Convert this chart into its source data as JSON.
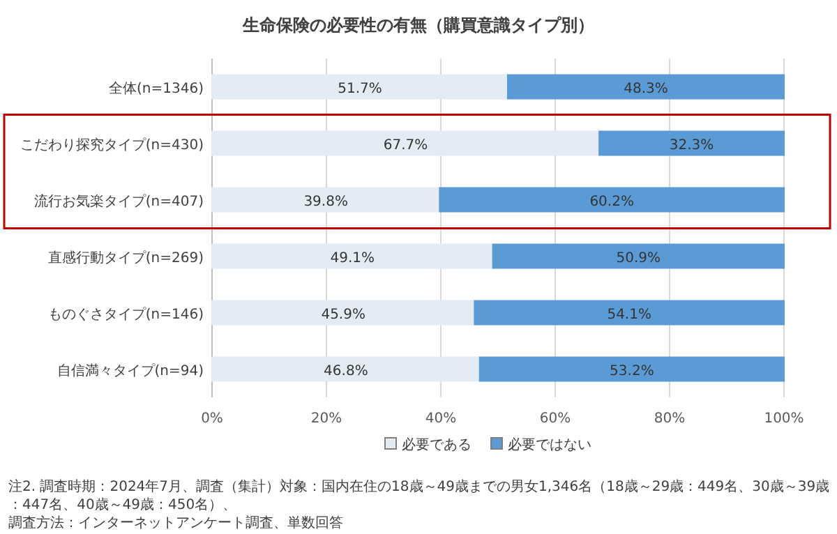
{
  "chart_data": {
    "type": "bar",
    "orientation": "horizontal",
    "stacked": true,
    "title": "生命保険の必要性の有無（購買意識タイプ別）",
    "categories": [
      "全体(n=1346)",
      "こだわり探究タイプ(n=430)",
      "流行お気楽タイプ(n=407)",
      "直感行動タイプ(n=269)",
      "ものぐさタイプ(n=146)",
      "自信満々タイプ(n=94)"
    ],
    "series": [
      {
        "name": "必要である",
        "color": "#e3ecf5",
        "values": [
          51.7,
          67.7,
          39.8,
          49.1,
          45.9,
          46.8
        ],
        "value_labels": [
          "51.7%",
          "67.7%",
          "39.8%",
          "49.1%",
          "45.9%",
          "46.8%"
        ]
      },
      {
        "name": "必要ではない",
        "color": "#5b9bd5",
        "values": [
          48.3,
          32.3,
          60.2,
          50.9,
          54.1,
          53.2
        ],
        "value_labels": [
          "48.3%",
          "32.3%",
          "60.2%",
          "50.9%",
          "54.1%",
          "53.2%"
        ]
      }
    ],
    "xlim": [
      0,
      100
    ],
    "xticks": [
      {
        "value": 0,
        "label": "0%"
      },
      {
        "value": 20,
        "label": "20%"
      },
      {
        "value": 40,
        "label": "40%"
      },
      {
        "value": 60,
        "label": "60%"
      },
      {
        "value": 80,
        "label": "80%"
      },
      {
        "value": 100,
        "label": "100%"
      }
    ],
    "grid": "x",
    "legend": "bottom",
    "annotations": [
      "注2. 調査時期：2024年7月、調査（集計）対象：国内在住の18歳～49歳までの男女1,346名（18歳～29歳：449名、30歳～39歳：447名、40歳～49歳：450名）、",
      "調査方法：インターネットアンケート調査、単数回答"
    ]
  }
}
